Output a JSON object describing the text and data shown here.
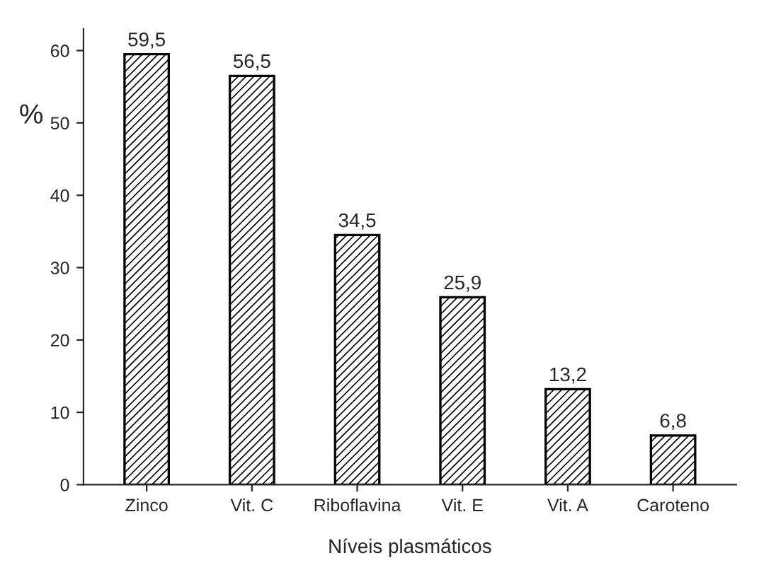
{
  "chart_data": {
    "type": "bar",
    "categories": [
      "Zinco",
      "Vit. C",
      "Riboflavina",
      "Vit. E",
      "Vit. A",
      "Caroteno"
    ],
    "values": [
      59.5,
      56.5,
      34.5,
      25.9,
      13.2,
      6.8
    ],
    "value_labels": [
      "59,5",
      "56,5",
      "34,5",
      "25,9",
      "13,2",
      "6,8"
    ],
    "color": "#000000",
    "xlabel": "Níveis plasmáticos",
    "ylabel": "%",
    "ylim": [
      0,
      63
    ],
    "yticks": [
      0,
      10,
      20,
      30,
      40,
      50,
      60
    ],
    "grid": false,
    "legend": false
  }
}
